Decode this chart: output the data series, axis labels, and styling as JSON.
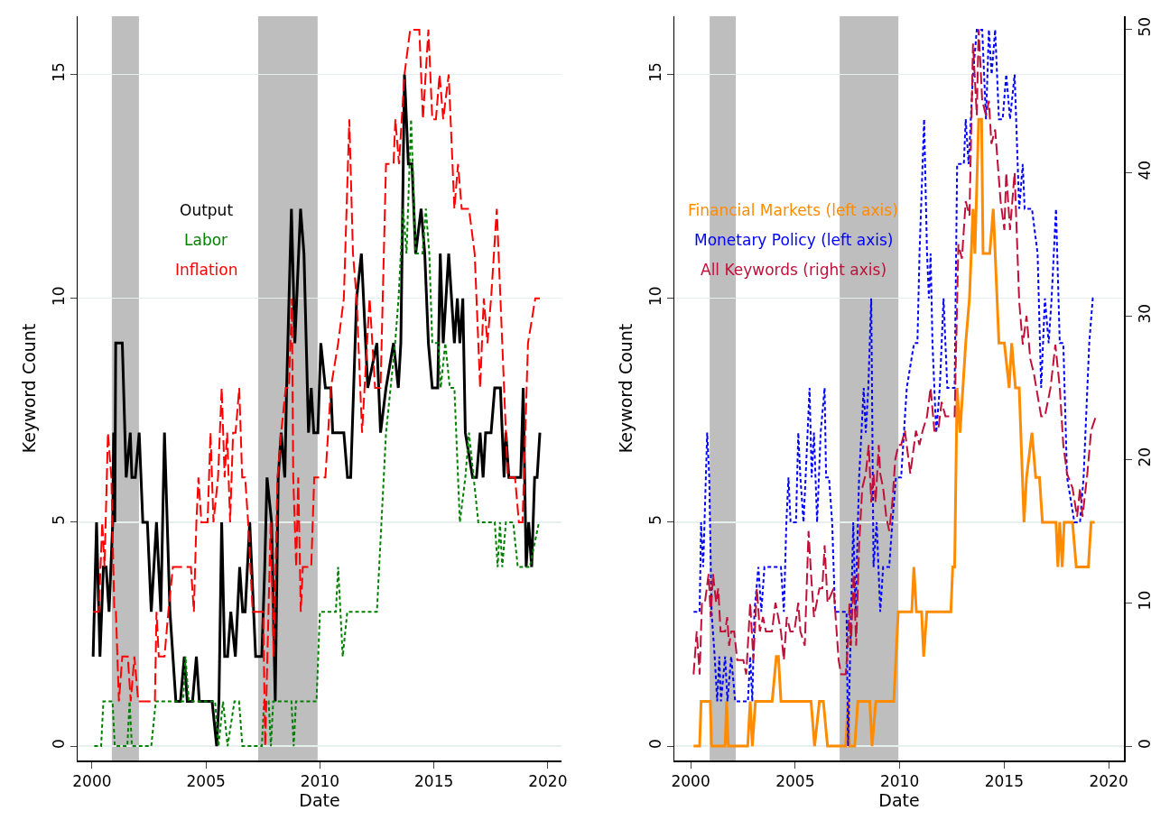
{
  "chart_data": [
    {
      "type": "line",
      "xlabel": "Date",
      "ylabel": "Keyword Count",
      "xlim": [
        1999.37,
        2020.6
      ],
      "xticks": [
        2000,
        2005,
        2010,
        2015,
        2020
      ],
      "ylim": [
        -0.32,
        16.3
      ],
      "yticks": [
        0,
        5,
        10,
        15
      ],
      "grid": "y",
      "legend": "left",
      "bands": [
        {
          "axis": "x",
          "from": 2000.87,
          "to": 2002.06,
          "color": "#bebebe"
        },
        {
          "axis": "x",
          "from": 2007.29,
          "to": 2009.9,
          "color": "#bebebe"
        }
      ],
      "series": [
        {
          "name": "Output",
          "color": "#000000",
          "line_style": "solid",
          "x": [
            2000.05,
            2000.2,
            2000.35,
            2000.5,
            2000.62,
            2000.75,
            2000.91,
            2000.95,
            2001.0,
            2001.04,
            2001.33,
            2001.5,
            2001.68,
            2001.75,
            2001.9,
            2002.07,
            2002.23,
            2002.43,
            2002.6,
            2002.83,
            2003.02,
            2003.18,
            2003.42,
            2003.68,
            2003.88,
            2004.05,
            2004.18,
            2004.41,
            2004.58,
            2004.71,
            2005.27,
            2005.47,
            2005.57,
            2005.69,
            2005.82,
            2005.95,
            2006.09,
            2006.29,
            2006.48,
            2006.61,
            2006.72,
            2006.92,
            2007.18,
            2007.45,
            2007.58,
            2007.68,
            2007.88,
            2008.04,
            2008.17,
            2008.3,
            2008.46,
            2008.54,
            2008.75,
            2008.9,
            2009.15,
            2009.3,
            2009.5,
            2009.62,
            2009.73,
            2009.91,
            2010.04,
            2010.24,
            2010.48,
            2010.56,
            2011.05,
            2011.21,
            2011.35,
            2011.61,
            2011.82,
            2012.1,
            2012.5,
            2012.66,
            2012.9,
            2013.23,
            2013.44,
            2013.55,
            2013.71,
            2013.88,
            2014.04,
            2014.2,
            2014.44,
            2014.6,
            2014.76,
            2014.93,
            2015.17,
            2015.28,
            2015.41,
            2015.65,
            2015.9,
            2016.03,
            2016.14,
            2016.27,
            2016.38,
            2016.7,
            2016.87,
            2017.03,
            2017.16,
            2017.27,
            2017.51,
            2017.67,
            2017.92,
            2018.08,
            2018.16,
            2018.29,
            2018.81,
            2018.92,
            2019.05,
            2019.16,
            2019.29,
            2019.42,
            2019.53,
            2019.65
          ],
          "values": [
            2,
            5,
            2,
            4,
            4,
            3,
            5,
            7,
            5,
            9,
            9,
            6,
            7,
            6,
            6,
            7,
            5,
            5,
            3,
            5,
            3,
            7,
            3,
            1,
            1,
            2,
            1,
            1,
            2,
            1,
            1,
            0,
            1,
            5,
            2,
            2,
            3,
            2,
            4,
            3,
            3,
            5,
            2,
            2,
            4,
            6,
            5,
            1,
            6,
            7,
            6,
            8,
            12,
            9,
            12,
            11,
            7,
            8,
            7,
            7,
            9,
            8,
            8,
            7,
            7,
            6,
            6,
            10,
            11,
            8,
            9,
            7,
            8,
            9,
            8,
            9,
            15,
            13,
            13,
            11,
            12,
            11,
            9,
            8,
            8,
            11,
            9,
            11,
            9,
            10,
            9,
            10,
            7,
            6,
            6,
            7,
            6,
            7,
            7,
            8,
            8,
            6,
            7,
            6,
            6,
            8,
            4,
            5,
            4,
            6,
            6,
            7
          ]
        },
        {
          "name": "Labor",
          "color": "#008000",
          "line_style": "dotted",
          "x": [
            2000.1,
            2000.4,
            2000.5,
            2000.9,
            2001.0,
            2001.55,
            2001.65,
            2001.75,
            2002.2,
            2002.6,
            2002.8,
            2004.0,
            2004.1,
            2004.25,
            2005.4,
            2005.55,
            2005.75,
            2005.95,
            2006.25,
            2006.45,
            2006.6,
            2007.45,
            2007.55,
            2007.75,
            2007.85,
            2007.95,
            2008.75,
            2008.85,
            2008.95,
            2009.85,
            2010.0,
            2010.7,
            2010.8,
            2011.0,
            2011.2,
            2012.5,
            2012.7,
            2012.9,
            2013.1,
            2013.3,
            2013.45,
            2013.65,
            2013.8,
            2014.0,
            2014.2,
            2014.5,
            2014.65,
            2014.8,
            2014.93,
            2015.2,
            2015.3,
            2015.5,
            2015.7,
            2015.9,
            2016.14,
            2016.38,
            2016.54,
            2016.95,
            2017.67,
            2017.8,
            2017.9,
            2018.0,
            2018.16,
            2018.48,
            2018.68,
            2019.21,
            2019.61
          ],
          "values": [
            0,
            0,
            1,
            1,
            0,
            0,
            1,
            0,
            0,
            0,
            1,
            1,
            2,
            1,
            1,
            0,
            1,
            0,
            1,
            1,
            0,
            0,
            1,
            1,
            0,
            1,
            1,
            0,
            1,
            1,
            3,
            3,
            4,
            2,
            3,
            3,
            5,
            7,
            8,
            9,
            10,
            12,
            11,
            14,
            11,
            11,
            12,
            11,
            9,
            9,
            8,
            9,
            8,
            8,
            5,
            6,
            7,
            5,
            5,
            4,
            5,
            4,
            5,
            5,
            4,
            4,
            5
          ]
        },
        {
          "name": "Inflation",
          "color": "#ff0000",
          "line_style": "dashed",
          "x": [
            2000.05,
            2000.3,
            2000.45,
            2000.55,
            2000.7,
            2000.85,
            2000.98,
            2001.05,
            2001.18,
            2001.33,
            2001.57,
            2001.7,
            2001.86,
            2002.03,
            2002.76,
            2002.83,
            2002.93,
            2003.18,
            2003.35,
            2003.55,
            2004.34,
            2004.47,
            2004.58,
            2004.67,
            2004.8,
            2005.07,
            2005.2,
            2005.33,
            2005.53,
            2005.69,
            2005.82,
            2005.93,
            2006.06,
            2006.19,
            2006.3,
            2006.46,
            2006.59,
            2006.72,
            2006.85,
            2007.05,
            2007.51,
            2007.6,
            2007.84,
            2007.97,
            2008.14,
            2008.3,
            2008.5,
            2008.64,
            2008.77,
            2008.83,
            2008.96,
            2009.05,
            2009.16,
            2009.25,
            2009.62,
            2009.75,
            2010.24,
            2010.48,
            2010.8,
            2011.05,
            2011.29,
            2011.45,
            2011.61,
            2011.85,
            2012.18,
            2012.42,
            2012.66,
            2012.9,
            2013.23,
            2013.31,
            2013.47,
            2013.71,
            2013.96,
            2014.36,
            2014.52,
            2014.76,
            2014.93,
            2015.09,
            2015.25,
            2015.41,
            2015.65,
            2015.9,
            2016.06,
            2016.22,
            2016.54,
            2016.79,
            2017.03,
            2017.19,
            2017.35,
            2017.51,
            2017.76,
            2018.0,
            2018.24,
            2018.56,
            2018.73,
            2018.89,
            2019.13,
            2019.45,
            2019.65
          ],
          "values": [
            3,
            3,
            5,
            4,
            7,
            6,
            3,
            3,
            1,
            2,
            2,
            1,
            2,
            1,
            1,
            3,
            2,
            2,
            3,
            4,
            4,
            3,
            5,
            6,
            5,
            5,
            7,
            5,
            6,
            8,
            6,
            7,
            5,
            7,
            7,
            8,
            6,
            6,
            5,
            3,
            3,
            0,
            5,
            2,
            6,
            7,
            8,
            8,
            10,
            6,
            4,
            6,
            3,
            4,
            4,
            6,
            6,
            8,
            9,
            10,
            14,
            11,
            10,
            7,
            10,
            8,
            8,
            13,
            13,
            14,
            13,
            15,
            16,
            16,
            14,
            16,
            14,
            14,
            15,
            14,
            15,
            12,
            13,
            12,
            12,
            11,
            8,
            10,
            9,
            10,
            12,
            9,
            6,
            6,
            5,
            5,
            9,
            10,
            10
          ]
        }
      ]
    },
    {
      "type": "line",
      "xlabel": "Date",
      "ylabel": "Keyword Count",
      "xlim": [
        1999.22,
        2020.73
      ],
      "xticks": [
        2000,
        2005,
        2010,
        2015,
        2020
      ],
      "ylim": [
        -0.32,
        16.3
      ],
      "yticks": [
        0,
        5,
        10,
        15
      ],
      "y2lim": [
        -1.0,
        50.9
      ],
      "y2ticks": [
        0,
        10,
        20,
        30,
        40,
        50
      ],
      "grid": "y",
      "legend": "left",
      "bands": [
        {
          "axis": "x",
          "from": 2000.91,
          "to": 2002.16,
          "color": "#bebebe"
        },
        {
          "axis": "x",
          "from": 2007.13,
          "to": 2009.94,
          "color": "#bebebe"
        }
      ],
      "series": [
        {
          "name": "Financial Markets (left axis)",
          "color": "#ff8c00",
          "line_style": "solid",
          "x": [
            2000.14,
            2000.43,
            2000.5,
            2000.94,
            2001.0,
            2001.65,
            2001.72,
            2001.8,
            2002.73,
            2002.85,
            2002.95,
            2003.1,
            2003.9,
            2004.1,
            2004.2,
            2004.32,
            2005.76,
            2005.93,
            2006.16,
            2006.35,
            2006.55,
            2007.42,
            2007.53,
            2007.6,
            2007.85,
            2008.0,
            2008.57,
            2008.68,
            2008.86,
            2009.72,
            2009.93,
            2010.58,
            2010.68,
            2010.8,
            2011.05,
            2011.15,
            2011.3,
            2012.45,
            2012.54,
            2012.63,
            2012.75,
            2012.89,
            2013.16,
            2013.34,
            2013.51,
            2013.6,
            2013.78,
            2013.92,
            2013.99,
            2014.31,
            2014.48,
            2014.66,
            2014.75,
            2015.01,
            2015.24,
            2015.36,
            2015.54,
            2015.72,
            2015.95,
            2016.07,
            2016.33,
            2016.51,
            2016.69,
            2016.83,
            2017.48,
            2017.57,
            2017.66,
            2017.78,
            2017.87,
            2018.27,
            2018.45,
            2019.03,
            2019.16,
            2019.33
          ],
          "values": [
            0,
            0,
            1,
            1,
            0,
            0,
            1,
            0,
            0,
            1,
            0,
            1,
            1,
            2,
            2,
            1,
            1,
            0,
            1,
            1,
            0,
            0,
            1,
            0,
            0,
            1,
            1,
            0,
            1,
            1,
            3,
            3,
            4,
            3,
            3,
            2,
            3,
            3,
            4,
            4,
            8,
            7,
            9,
            10,
            12,
            11,
            14,
            14,
            11,
            11,
            12,
            10,
            9,
            9,
            8,
            9,
            8,
            8,
            5,
            6,
            7,
            6,
            6,
            5,
            5,
            4,
            5,
            4,
            5,
            5,
            4,
            4,
            5,
            5
          ]
        },
        {
          "name": "Monetary Policy (left axis)",
          "color": "#0000ff",
          "line_style": "dotted",
          "x": [
            2000.14,
            2000.43,
            2000.5,
            2000.6,
            2000.79,
            2000.89,
            2001.0,
            2001.15,
            2001.27,
            2001.37,
            2001.45,
            2001.65,
            2001.76,
            2001.94,
            2002.13,
            2002.74,
            2002.85,
            2002.95,
            2003.05,
            2003.24,
            2003.38,
            2003.53,
            2004.32,
            2004.46,
            2004.58,
            2004.68,
            2004.78,
            2005.04,
            2005.15,
            2005.25,
            2005.4,
            2005.5,
            2005.69,
            2005.79,
            2005.9,
            2006.05,
            2006.22,
            2006.41,
            2006.48,
            2006.62,
            2006.77,
            2006.91,
            2007.46,
            2007.53,
            2007.63,
            2007.78,
            2007.89,
            2008.06,
            2008.28,
            2008.38,
            2008.5,
            2008.64,
            2008.75,
            2008.9,
            2009.07,
            2009.21,
            2009.5,
            2009.65,
            2009.82,
            2010.07,
            2010.34,
            2010.69,
            2010.85,
            2010.95,
            2011.17,
            2011.31,
            2011.4,
            2011.48,
            2011.57,
            2011.75,
            2011.92,
            2012.1,
            2012.28,
            2012.63,
            2012.75,
            2013.07,
            2013.16,
            2013.3,
            2013.51,
            2013.69,
            2013.95,
            2014.13,
            2014.27,
            2014.4,
            2014.57,
            2014.75,
            2014.93,
            2015.1,
            2015.28,
            2015.5,
            2015.72,
            2015.89,
            2015.98,
            2016.33,
            2016.6,
            2016.77,
            2016.95,
            2017.13,
            2017.27,
            2017.48,
            2017.66,
            2017.83,
            2018.01,
            2018.36,
            2018.63,
            2018.8,
            2019.07,
            2019.24,
            2019.33
          ],
          "values": [
            3,
            3,
            5,
            4,
            7,
            6,
            3,
            2,
            1,
            2,
            1,
            2,
            1,
            2,
            1,
            1,
            2,
            1,
            3,
            4,
            3,
            4,
            4,
            3,
            5,
            6,
            5,
            5,
            7,
            6,
            5,
            6,
            8,
            6,
            7,
            5,
            7,
            8,
            6,
            6,
            5,
            3,
            3,
            0,
            2,
            5,
            3,
            6,
            8,
            7,
            8,
            10,
            4,
            5,
            3,
            4,
            4,
            5,
            6,
            6,
            8,
            9,
            9,
            11,
            14,
            11,
            10,
            11,
            9,
            7,
            8,
            10,
            8,
            8,
            13,
            13,
            14,
            13,
            15,
            16,
            16,
            14,
            16,
            15,
            16,
            14,
            14,
            15,
            14,
            15,
            12,
            13,
            12,
            12,
            11,
            8,
            10,
            9,
            10,
            12,
            9,
            9,
            6,
            5,
            5,
            6,
            9,
            10,
            10
          ]
        },
        {
          "name": "All Keywords (right axis)",
          "color": "#c0103a",
          "line_style": "dashed",
          "axis": "y2",
          "x": [
            2000.14,
            2000.29,
            2000.43,
            2000.54,
            2000.68,
            2000.86,
            2000.96,
            2001.07,
            2001.22,
            2001.32,
            2001.43,
            2001.65,
            2001.75,
            2001.84,
            2001.94,
            2002.08,
            2002.23,
            2002.52,
            2002.66,
            2002.85,
            2003.0,
            2003.17,
            2003.31,
            2003.46,
            2003.6,
            2003.89,
            2004.06,
            2004.32,
            2004.46,
            2004.6,
            2004.77,
            2004.96,
            2005.15,
            2005.25,
            2005.46,
            2005.64,
            2005.76,
            2005.9,
            2006.16,
            2006.3,
            2006.41,
            2006.55,
            2006.84,
            2007.08,
            2007.2,
            2007.42,
            2007.52,
            2007.6,
            2007.67,
            2007.8,
            2007.92,
            2008.06,
            2008.21,
            2008.38,
            2008.52,
            2008.64,
            2008.75,
            2008.85,
            2009.0,
            2009.07,
            2009.21,
            2009.36,
            2009.5,
            2009.65,
            2009.79,
            2009.94,
            2010.07,
            2010.25,
            2010.51,
            2010.78,
            2010.95,
            2011.1,
            2011.31,
            2011.48,
            2011.66,
            2011.84,
            2012.01,
            2012.19,
            2012.63,
            2012.81,
            2012.98,
            2013.16,
            2013.34,
            2013.51,
            2013.69,
            2013.78,
            2013.95,
            2014.13,
            2014.27,
            2014.39,
            2014.57,
            2014.83,
            2015.01,
            2015.1,
            2015.28,
            2015.5,
            2015.72,
            2015.89,
            2016.07,
            2016.25,
            2016.42,
            2016.77,
            2016.95,
            2017.22,
            2017.45,
            2017.66,
            2017.83,
            2018.01,
            2018.27,
            2018.49,
            2018.63,
            2018.75,
            2018.98,
            2019.16,
            2019.39
          ],
          "values": [
            5,
            8,
            5,
            10,
            10,
            12,
            9,
            12,
            10,
            11,
            8,
            8,
            9,
            7,
            8,
            8,
            6,
            6,
            5,
            10,
            6,
            11,
            8,
            9,
            8,
            8,
            10,
            8,
            6,
            9,
            8,
            8,
            10,
            8,
            7,
            15,
            12,
            9,
            11,
            11,
            14,
            10,
            11,
            6,
            5,
            5,
            7,
            10,
            7,
            12,
            7,
            14,
            18,
            19,
            21,
            17,
            19,
            17,
            21,
            19,
            18,
            16,
            15,
            17,
            20,
            21,
            21,
            22,
            19,
            22,
            21,
            22,
            23,
            25,
            22,
            22,
            24,
            23,
            23,
            35,
            34,
            38,
            37,
            49,
            44,
            50,
            45,
            44,
            45,
            42,
            43,
            38,
            36,
            40,
            36,
            40,
            31,
            28,
            30,
            27,
            26,
            23,
            23,
            25,
            28,
            25,
            21,
            19,
            18,
            16,
            18,
            16,
            19,
            22,
            23
          ]
        }
      ]
    }
  ]
}
